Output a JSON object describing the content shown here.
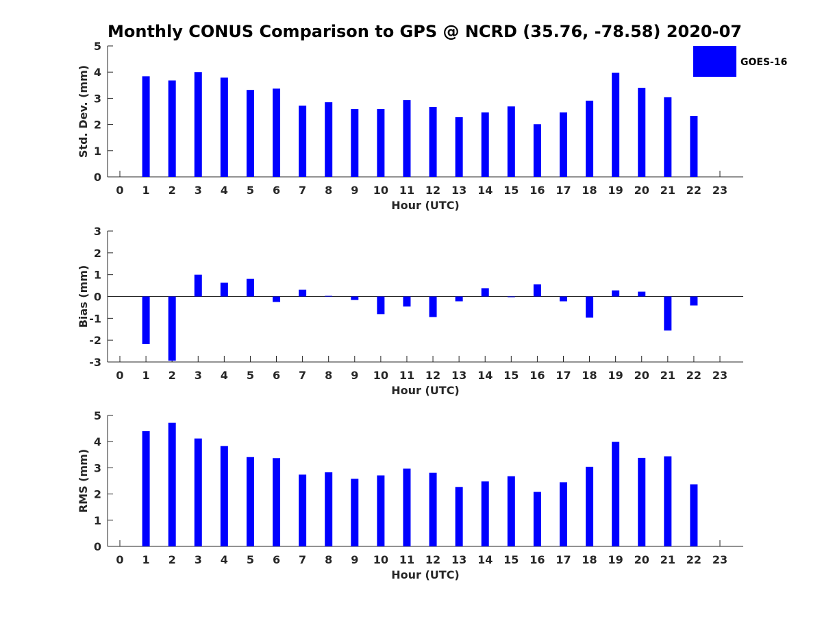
{
  "chart_data": {
    "type": "bar",
    "title": "Monthly CONUS Comparison to GPS @ NCRD (35.76, -78.58) 2020-07",
    "colors": {
      "bar": "#0000ff",
      "axis": "#262626",
      "background": "#ffffff"
    },
    "legend": {
      "label": "GOES-16",
      "location": "top-right"
    },
    "categories": [
      "0",
      "1",
      "2",
      "3",
      "4",
      "5",
      "6",
      "7",
      "8",
      "9",
      "10",
      "11",
      "12",
      "13",
      "14",
      "15",
      "16",
      "17",
      "18",
      "19",
      "20",
      "21",
      "22",
      "23"
    ],
    "panels": [
      {
        "id": "stddev",
        "ylabel": "Std. Dev. (mm)",
        "xlabel": "Hour (UTC)",
        "ylim": [
          0,
          5
        ],
        "yticks": [
          "0",
          "1",
          "2",
          "3",
          "4",
          "5"
        ],
        "zero_line": false,
        "series": [
          {
            "name": "GOES-16",
            "values": [
              null,
              3.84,
              3.68,
              4.0,
              3.79,
              3.32,
              3.37,
              2.72,
              2.85,
              2.59,
              2.59,
              2.93,
              2.67,
              2.28,
              2.46,
              2.69,
              2.01,
              2.46,
              2.91,
              3.98,
              3.4,
              3.04,
              2.33,
              null
            ]
          }
        ]
      },
      {
        "id": "bias",
        "ylabel": "Bias (mm)",
        "xlabel": "Hour (UTC)",
        "ylim": [
          -3,
          3
        ],
        "yticks": [
          "-3",
          "-2",
          "-1",
          "0",
          "1",
          "2",
          "3"
        ],
        "zero_line": true,
        "series": [
          {
            "name": "GOES-16",
            "values": [
              null,
              -2.18,
              -2.94,
              1.0,
              0.63,
              0.81,
              -0.25,
              0.31,
              0.03,
              -0.16,
              -0.81,
              -0.46,
              -0.94,
              -0.22,
              0.38,
              -0.02,
              0.56,
              -0.22,
              -0.97,
              0.28,
              0.22,
              -1.56,
              -0.41,
              null
            ]
          }
        ]
      },
      {
        "id": "rms",
        "ylabel": "RMS (mm)",
        "xlabel": "Hour (UTC)",
        "ylim": [
          0,
          5
        ],
        "yticks": [
          "0",
          "1",
          "2",
          "3",
          "4",
          "5"
        ],
        "zero_line": false,
        "series": [
          {
            "name": "GOES-16",
            "values": [
              null,
              4.4,
              4.72,
              4.12,
              3.83,
              3.41,
              3.37,
              2.74,
              2.83,
              2.58,
              2.71,
              2.97,
              2.81,
              2.27,
              2.48,
              2.68,
              2.08,
              2.45,
              3.04,
              3.99,
              3.38,
              3.44,
              2.37,
              null
            ]
          }
        ]
      }
    ]
  }
}
